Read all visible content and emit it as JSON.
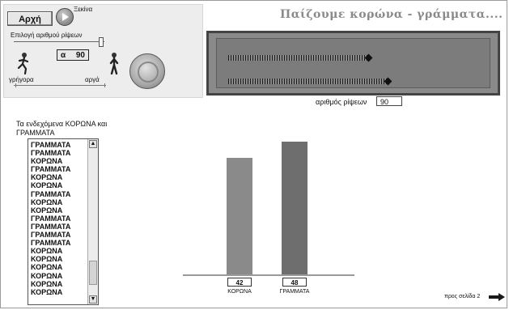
{
  "header": {
    "home_label": "Αρχή",
    "start_label": "Ξεκίνα",
    "title": "Παίζουμε κορώνα - γράμματα...."
  },
  "controls": {
    "choose_label": "Επιλογή αριθμού ρίψεων",
    "alpha_letter": "α",
    "alpha_value": "90",
    "fast_label": "γρήγορα",
    "slow_label": "αργά",
    "throws_label": "αριθμός ρίψεων",
    "throws_value": "90"
  },
  "progress": {
    "heads_fraction": 0.47,
    "tails_fraction": 0.53
  },
  "outcomes": {
    "caption": "Τα ενδεχόμενα ΚΟΡΩΝΑ και ΓΡΑΜΜΑΤΑ",
    "items": [
      "ΓΡΑΜΜΑΤΑ",
      "ΓΡΑΜΜΑΤΑ",
      "ΚΟΡΩΝΑ",
      "ΓΡΑΜΜΑΤΑ",
      "ΚΟΡΩΝΑ",
      "ΚΟΡΩΝΑ",
      "ΓΡΑΜΜΑΤΑ",
      "ΚΟΡΩΝΑ",
      "ΚΟΡΩΝΑ",
      "ΓΡΑΜΜΑΤΑ",
      "ΓΡΑΜΜΑΤΑ",
      "ΓΡΑΜΜΑΤΑ",
      "ΓΡΑΜΜΑΤΑ",
      "ΚΟΡΩΝΑ",
      "ΚΟΡΩΝΑ",
      "ΚΟΡΩΝΑ",
      "ΚΟΡΩΝΑ",
      "ΚΟΡΩΝΑ",
      "ΚΟΡΩΝΑ"
    ]
  },
  "chart_data": {
    "type": "bar",
    "categories": [
      "ΚΟΡΩΝΑ",
      "ΓΡΑΜΜΑΤΑ"
    ],
    "values": [
      42,
      48
    ],
    "colors": [
      "#8a8a8a",
      "#6e6e6e"
    ],
    "ylim": [
      0,
      60
    ]
  },
  "footer": {
    "next_label": "προς σελίδα 2"
  },
  "colors": {
    "progress_panel": "#8a8a8a",
    "title": "#8a8a8a"
  },
  "icons": {
    "start": "play-circle-icon",
    "coin": "euro-coin-icon",
    "runner_fast": "running-boy-icon",
    "runner_slow": "walking-man-icon",
    "next": "right-arrow-icon"
  }
}
